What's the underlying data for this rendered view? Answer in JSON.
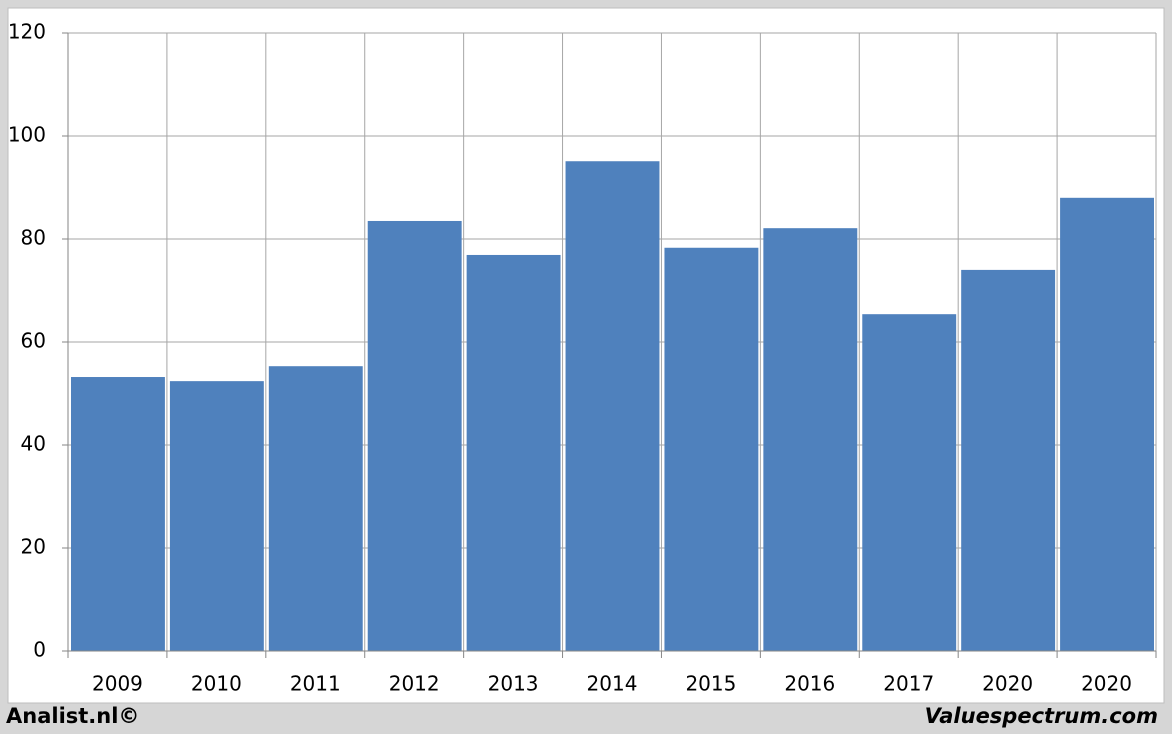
{
  "chart_data": {
    "type": "bar",
    "categories": [
      "2009",
      "2010",
      "2011",
      "2012",
      "2013",
      "2014",
      "2015",
      "2016",
      "2017",
      "2020",
      "2020"
    ],
    "values": [
      53.2,
      52.4,
      55.3,
      83.5,
      76.9,
      95.1,
      78.3,
      82.1,
      65.4,
      74.0,
      88.0
    ],
    "color": "#4f81bd",
    "ylim": [
      0,
      120
    ],
    "yticks": [
      0,
      20,
      40,
      60,
      80,
      100,
      120
    ],
    "grid": true
  },
  "footer": {
    "left": "Analist.nl©",
    "right": "Valuespectrum.com"
  }
}
